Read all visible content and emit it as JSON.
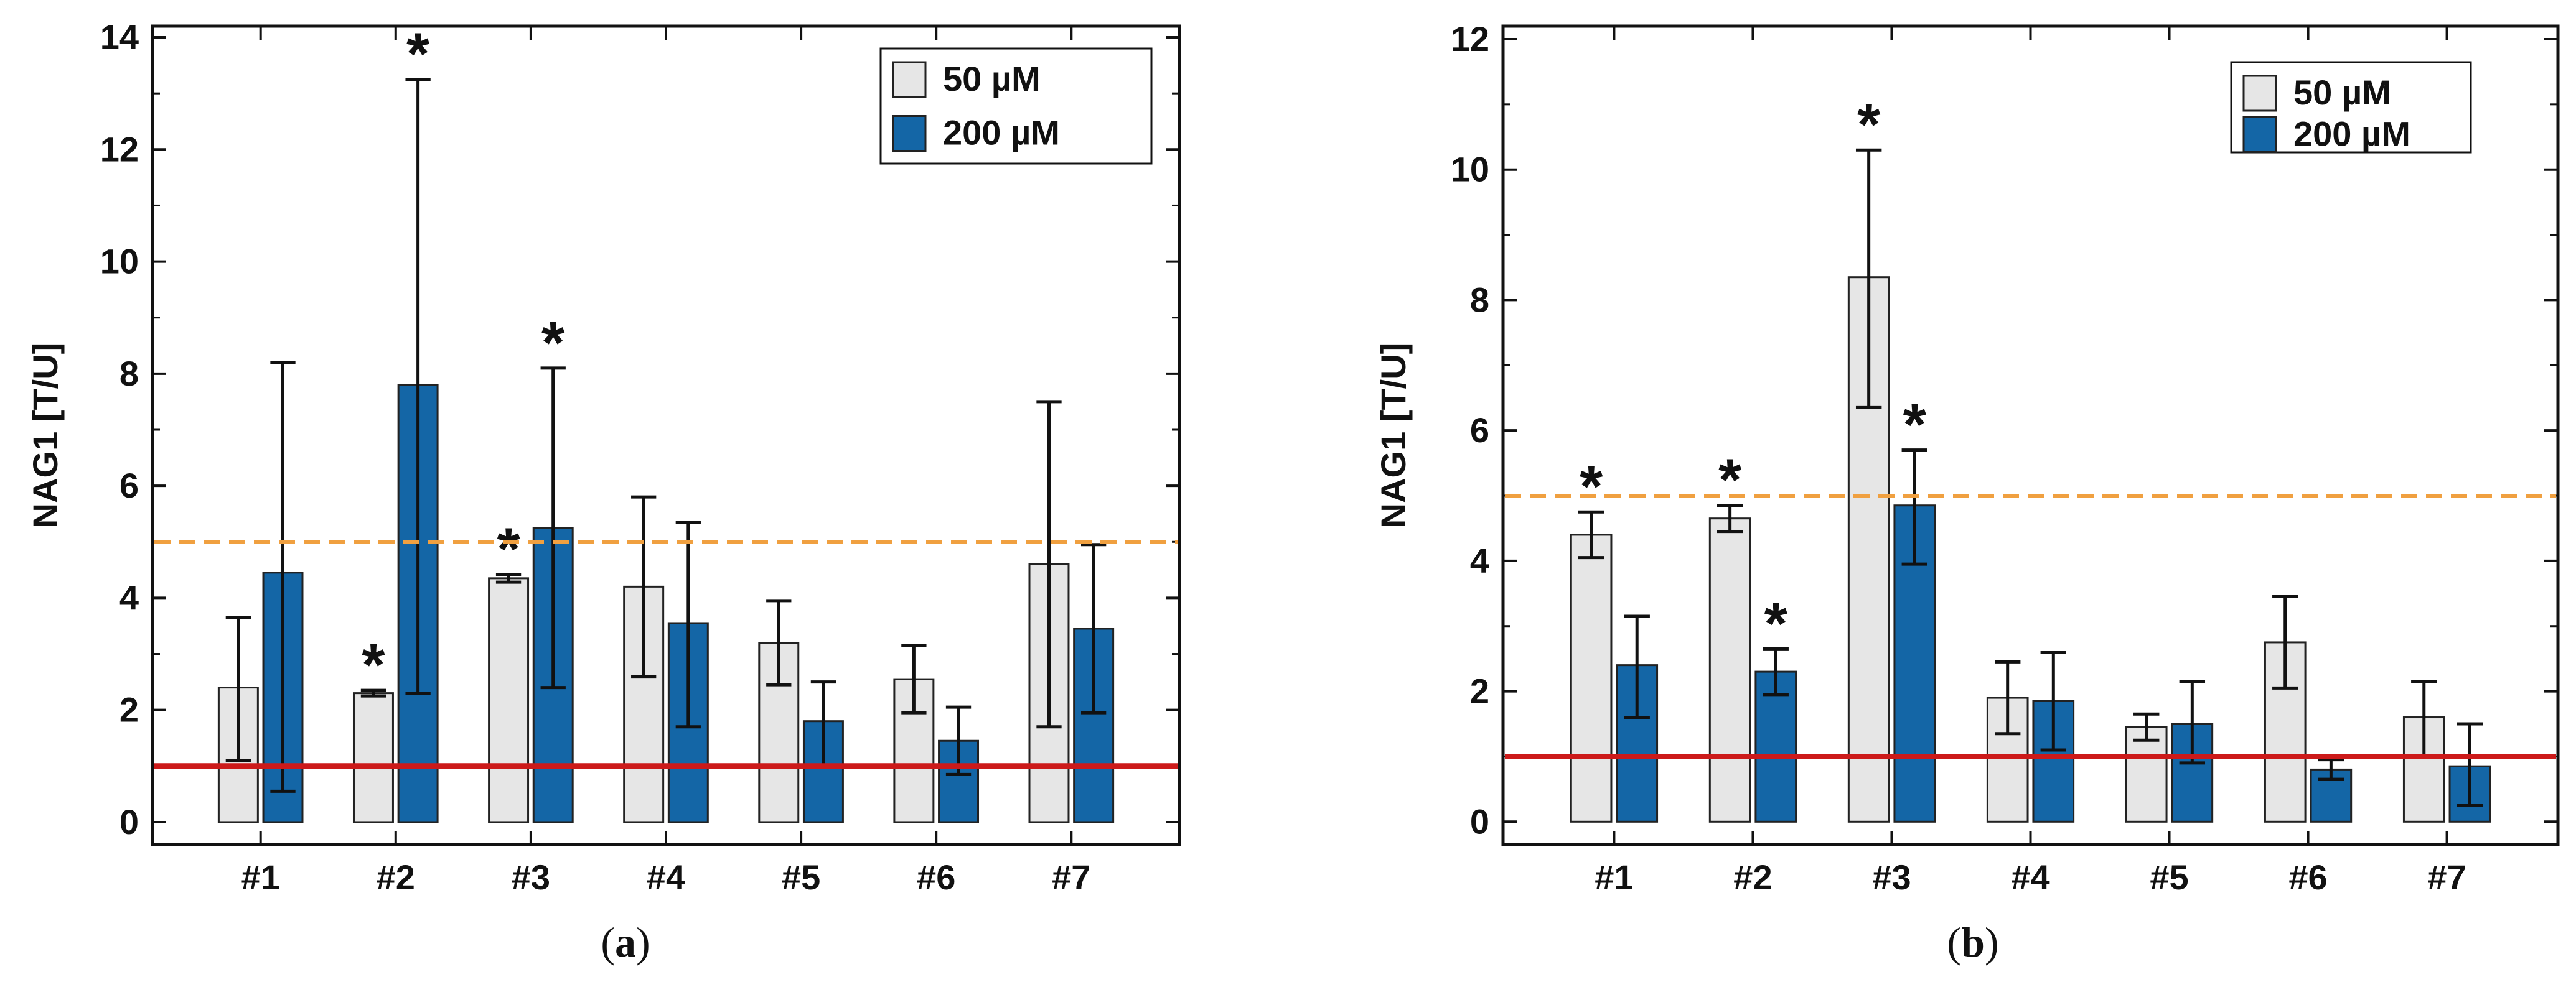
{
  "colors": {
    "bar_50": "#e6e6e6",
    "bar_200": "#1466a6",
    "bar_stroke": "#222222",
    "ref_solid": "#cc1a1a",
    "ref_dashed": "#f0a040",
    "axis": "#111111"
  },
  "chart_data": [
    {
      "type": "bar",
      "panel_label": "a",
      "categories": [
        "#1",
        "#2",
        "#3",
        "#4",
        "#5",
        "#6",
        "#7"
      ],
      "ylabel": "NAG1  [T/U]",
      "xlabel": "",
      "ylim": [
        -0.4,
        14.2
      ],
      "yticks": [
        0,
        2,
        4,
        6,
        8,
        10,
        12,
        14
      ],
      "ytick_labels": [
        "0",
        "2",
        "4",
        "6",
        "8",
        "10",
        "12",
        "14"
      ],
      "legend_position": "top-right",
      "series": [
        {
          "name": "50 µM",
          "color_key": "bar_50",
          "values": [
            2.4,
            2.3,
            4.35,
            4.2,
            3.2,
            2.55,
            4.6
          ],
          "err_low": [
            1.1,
            2.25,
            4.28,
            2.6,
            2.45,
            1.95,
            1.7
          ],
          "err_high": [
            3.65,
            2.35,
            4.42,
            5.8,
            3.95,
            3.15,
            7.5
          ],
          "significant": [
            false,
            true,
            true,
            false,
            false,
            false,
            false
          ]
        },
        {
          "name": "200 µM",
          "color_key": "bar_200",
          "values": [
            4.45,
            7.8,
            5.25,
            3.55,
            1.8,
            1.45,
            3.45
          ],
          "err_low": [
            0.55,
            2.3,
            2.4,
            1.7,
            1.0,
            0.85,
            1.95
          ],
          "err_high": [
            8.2,
            13.25,
            8.1,
            5.35,
            2.5,
            2.05,
            4.95
          ],
          "significant": [
            false,
            true,
            true,
            false,
            false,
            false,
            false
          ]
        }
      ],
      "reference_lines": [
        {
          "value": 1,
          "style": "solid",
          "color_key": "ref_solid"
        },
        {
          "value": 5,
          "style": "dashed",
          "color_key": "ref_dashed"
        }
      ],
      "significance_marker": "*"
    },
    {
      "type": "bar",
      "panel_label": "b",
      "categories": [
        "#1",
        "#2",
        "#3",
        "#4",
        "#5",
        "#6",
        "#7"
      ],
      "ylabel": "NAG1 [T/U]",
      "xlabel": "",
      "ylim": [
        -0.35,
        12.2
      ],
      "yticks": [
        0,
        2,
        4,
        6,
        8,
        10,
        12
      ],
      "ytick_labels": [
        "0",
        "2",
        "4",
        "6",
        "8",
        "10",
        "12"
      ],
      "legend_position": "top-right",
      "series": [
        {
          "name": "50 µM",
          "color_key": "bar_50",
          "values": [
            4.4,
            4.65,
            8.35,
            1.9,
            1.45,
            2.75,
            1.6
          ],
          "err_low": [
            4.05,
            4.45,
            6.35,
            1.35,
            1.25,
            2.05,
            1.0
          ],
          "err_high": [
            4.75,
            4.85,
            10.3,
            2.45,
            1.65,
            3.45,
            2.15
          ],
          "significant": [
            true,
            true,
            true,
            false,
            false,
            false,
            false
          ]
        },
        {
          "name": "200 µM",
          "color_key": "bar_200",
          "values": [
            2.4,
            2.3,
            4.85,
            1.85,
            1.5,
            0.8,
            0.85
          ],
          "err_low": [
            1.6,
            1.95,
            3.95,
            1.1,
            0.9,
            0.65,
            0.25
          ],
          "err_high": [
            3.15,
            2.65,
            5.7,
            2.6,
            2.15,
            0.95,
            1.5
          ],
          "significant": [
            false,
            true,
            true,
            false,
            false,
            false,
            false
          ]
        }
      ],
      "reference_lines": [
        {
          "value": 1,
          "style": "solid",
          "color_key": "ref_solid"
        },
        {
          "value": 5,
          "style": "dashed",
          "color_key": "ref_dashed"
        }
      ],
      "significance_marker": "*"
    }
  ]
}
